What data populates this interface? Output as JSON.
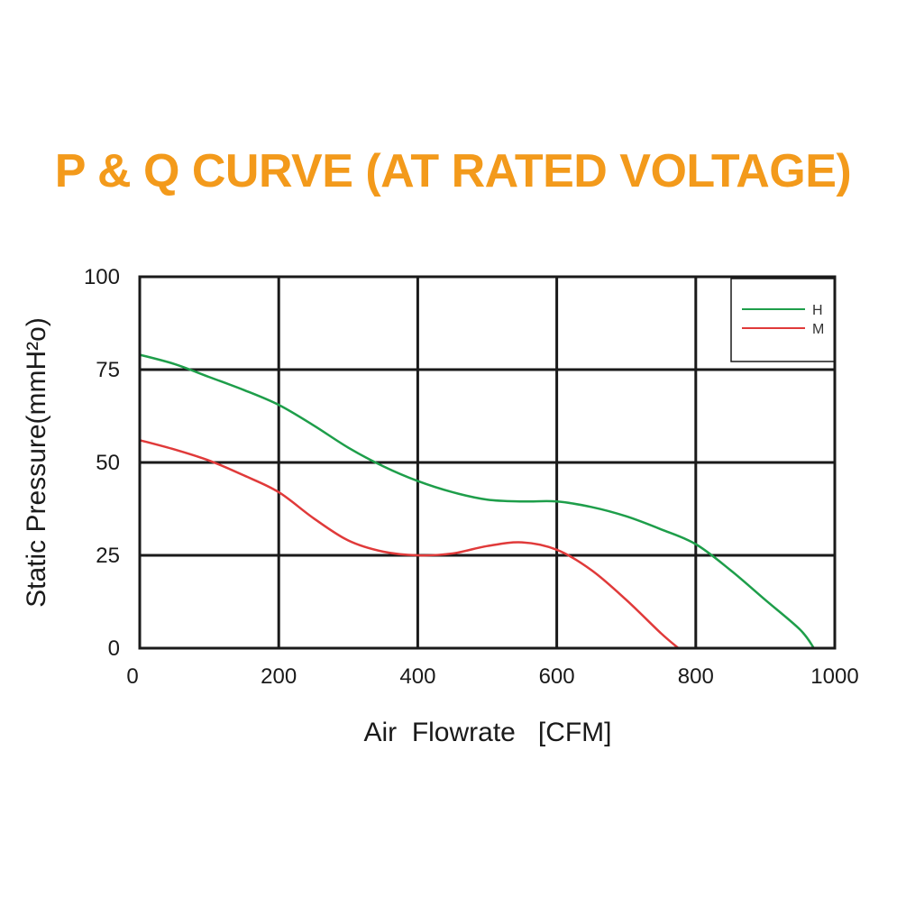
{
  "chart_data": {
    "type": "line",
    "title": "P & Q CURVE (AT RATED VOLTAGE)",
    "xlabel": "Air  Flowrate   [CFM]",
    "ylabel": "Static Pressure(mmH²o)",
    "xlim": [
      0,
      1000
    ],
    "ylim": [
      0,
      100
    ],
    "xticks": [
      0,
      200,
      400,
      600,
      800,
      1000
    ],
    "yticks": [
      0,
      25,
      50,
      75,
      100
    ],
    "xtick_labels": [
      "0",
      "200",
      "400",
      "600",
      "800",
      "1000"
    ],
    "ytick_labels": [
      "0",
      "25",
      "50",
      "75",
      "100"
    ],
    "grid": true,
    "legend_position": "top-right",
    "series": [
      {
        "name": "H",
        "color": "#1e9e4a",
        "x": [
          0,
          50,
          100,
          150,
          200,
          250,
          300,
          350,
          400,
          450,
          500,
          550,
          600,
          650,
          700,
          750,
          800,
          850,
          900,
          950,
          970
        ],
        "y": [
          79,
          76.5,
          73,
          69.5,
          65.5,
          60,
          54,
          49,
          45,
          42,
          40,
          39.5,
          39.5,
          38,
          35.5,
          32,
          28,
          21,
          13,
          5,
          0
        ]
      },
      {
        "name": "M",
        "color": "#e03a3a",
        "x": [
          0,
          50,
          100,
          150,
          200,
          250,
          300,
          350,
          400,
          450,
          500,
          550,
          600,
          650,
          700,
          750,
          775
        ],
        "y": [
          56,
          53.5,
          50.5,
          46.5,
          42,
          35,
          29,
          26,
          25,
          25.5,
          27.5,
          28.5,
          26.5,
          21,
          13,
          4,
          0
        ]
      }
    ]
  }
}
